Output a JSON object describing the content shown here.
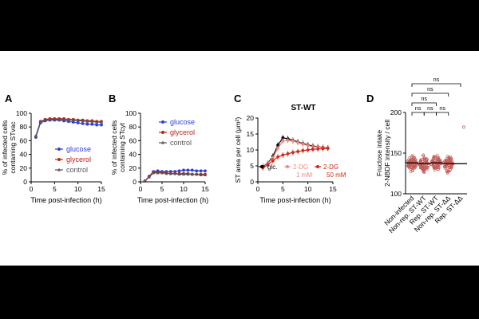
{
  "chart_data": [
    {
      "panel": "A",
      "type": "line",
      "xlabel": "Time post-infection (h)",
      "ylabel_lines": [
        "% of infected cells",
        "containing STvac"
      ],
      "xlim": [
        0,
        15
      ],
      "ylim": [
        0,
        100
      ],
      "xticks": [
        0,
        5,
        10,
        15
      ],
      "yticks": [
        0,
        20,
        40,
        60,
        80,
        100
      ],
      "legend": "bottom-right",
      "x": [
        1,
        2,
        3,
        4,
        5,
        6,
        7,
        8,
        9,
        10,
        11,
        12,
        13,
        14,
        15
      ],
      "series": [
        {
          "name": "glucose",
          "color": "#2f3fd8",
          "marker": "circle",
          "values": [
            65,
            86,
            89,
            90,
            90,
            90,
            89,
            88,
            87,
            86,
            85,
            84,
            84,
            83,
            83
          ]
        },
        {
          "name": "glycerol",
          "color": "#b8261c",
          "marker": "circle",
          "values": [
            66,
            88,
            91,
            92,
            92,
            92,
            92,
            91,
            91,
            90,
            90,
            89,
            89,
            88,
            88
          ]
        },
        {
          "name": "control",
          "color": "#555555",
          "marker": "triangle",
          "values": [
            67,
            88,
            90,
            91,
            91,
            91,
            91,
            90,
            90,
            89,
            89,
            88,
            88,
            87,
            87
          ]
        }
      ]
    },
    {
      "panel": "B",
      "type": "line",
      "xlabel": "Time post-infection (h)",
      "ylabel_lines": [
        "% of infected cells",
        "containing STcyt"
      ],
      "xlim": [
        0,
        15
      ],
      "ylim": [
        0,
        100
      ],
      "xticks": [
        0,
        5,
        10,
        15
      ],
      "yticks": [
        0,
        20,
        40,
        60,
        80,
        100
      ],
      "legend": "top-right",
      "x": [
        1,
        2,
        3,
        4,
        5,
        6,
        7,
        8,
        9,
        10,
        11,
        12,
        13,
        14,
        15
      ],
      "series": [
        {
          "name": "glucose",
          "color": "#2f3fd8",
          "marker": "circle",
          "values": [
            1,
            8,
            15,
            16,
            15,
            15,
            15,
            15,
            16,
            17,
            17,
            17,
            16,
            16,
            16
          ]
        },
        {
          "name": "glycerol",
          "color": "#b8261c",
          "marker": "circle",
          "values": [
            1,
            8,
            14,
            14,
            14,
            13,
            12,
            12,
            12,
            12,
            12,
            11,
            11,
            11,
            11
          ]
        },
        {
          "name": "control",
          "color": "#555555",
          "marker": "triangle",
          "values": [
            1,
            7,
            13,
            13,
            13,
            12,
            12,
            12,
            11,
            11,
            11,
            11,
            11,
            10,
            10
          ]
        }
      ]
    },
    {
      "panel": "C",
      "type": "line",
      "title": "ST-WT",
      "xlabel": "Time post-infection (h)",
      "ylabel": "ST area per cell (μm²)",
      "xlim": [
        0,
        15
      ],
      "ylim": [
        0,
        20
      ],
      "xticks": [
        0,
        5,
        10,
        15
      ],
      "yticks": [
        0,
        5,
        10,
        15,
        20
      ],
      "legend": "bottom",
      "x": [
        1,
        2,
        3,
        4,
        5,
        6,
        7,
        8,
        9,
        10,
        11,
        12,
        13,
        14
      ],
      "series": [
        {
          "name": "glc.",
          "color": "#000000",
          "marker": "circle",
          "values": [
            4.8,
            5.8,
            8.0,
            11.5,
            13.8,
            13.5,
            13.0,
            12.5,
            12.0,
            11.6,
            11.2,
            11.0,
            10.8,
            10.6
          ]
        },
        {
          "name": "2-DG 1 mM",
          "color": "#ee8a80",
          "marker": "circle",
          "values": [
            4.6,
            5.7,
            7.5,
            10.5,
            12.8,
            13.0,
            12.8,
            12.3,
            11.8,
            11.4,
            11.0,
            10.9,
            10.7,
            10.6
          ]
        },
        {
          "name": "2-DG 50 mM",
          "color": "#d1281c",
          "marker": "circle",
          "values": [
            4.4,
            5.3,
            6.6,
            7.8,
            8.4,
            8.8,
            9.2,
            9.5,
            9.8,
            10.0,
            10.2,
            10.3,
            10.4,
            10.5
          ]
        }
      ],
      "legend_entries": [
        {
          "label": "glc.",
          "color": "#000000"
        },
        {
          "label": "2-DG",
          "sub": "1 mM",
          "color": "#ee8a80"
        },
        {
          "label": "2-DG",
          "sub": "50 mM",
          "color": "#d1281c"
        }
      ]
    },
    {
      "panel": "D",
      "type": "scatter",
      "ylabel_lines": [
        "Fructose intake",
        "2-NBDF intensity / cell"
      ],
      "ylim": [
        100,
        200
      ],
      "yticks": [
        100,
        150,
        200
      ],
      "categories": [
        "Non-infected",
        "Non-rep. ST-WT",
        "Rep. ST-WT",
        "Non-rep. ST-ΔΔ",
        "Rep. ST-ΔΔ"
      ],
      "means": [
        138,
        137,
        138,
        137,
        137
      ],
      "outliers": [
        null,
        null,
        null,
        null,
        182
      ],
      "significance": [
        {
          "from": 0,
          "to": 1,
          "label": "ns"
        },
        {
          "from": 1,
          "to": 2,
          "label": "ns"
        },
        {
          "from": 2,
          "to": 3,
          "label": "ns"
        },
        {
          "from": 0,
          "to": 2,
          "label": "ns"
        },
        {
          "from": 0,
          "to": 3,
          "label": "ns"
        },
        {
          "from": 0,
          "to": 4,
          "label": "ns"
        }
      ]
    }
  ],
  "panel_labels": {
    "a": "A",
    "b": "B",
    "c": "C",
    "d": "D"
  },
  "axis_text": {
    "a_xlabel": "Time post-infection (h)",
    "b_xlabel": "Time post-infection (h)",
    "c_xlabel": "Time post-infection (h)"
  }
}
